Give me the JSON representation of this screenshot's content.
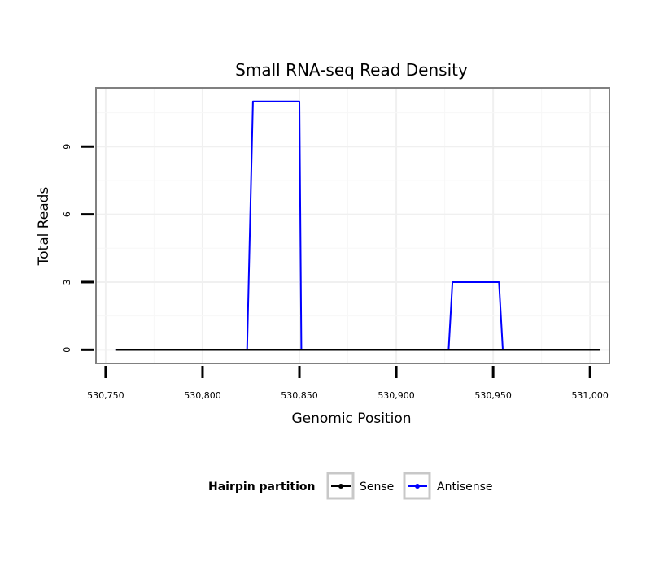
{
  "chart_data": {
    "type": "line",
    "title": "Small RNA-seq Read Density",
    "xlabel": "Genomic Position",
    "ylabel": "Total Reads",
    "xlim": [
      530745,
      531010
    ],
    "ylim": [
      -0.6,
      11.6
    ],
    "x_ticks": [
      530750,
      530800,
      530850,
      530900,
      530950,
      531000
    ],
    "x_tick_labels": [
      "530,750",
      "530,800",
      "530,850",
      "530,900",
      "530,950",
      "531,000"
    ],
    "y_ticks": [
      0,
      3,
      6,
      9
    ],
    "y_tick_labels": [
      "0",
      "3",
      "6",
      "9"
    ],
    "grid": true,
    "legend": {
      "title": "Hairpin partition",
      "placement": "bottom"
    },
    "series": [
      {
        "name": "Sense",
        "color": "#000000",
        "x": [
          530755,
          531005
        ],
        "y": [
          0,
          0
        ]
      },
      {
        "name": "Antisense",
        "color": "#0000ff",
        "x": [
          530755,
          530823,
          530826,
          530850,
          530851,
          530927,
          530929,
          530953,
          530955,
          531005
        ],
        "y": [
          0,
          0,
          11,
          11,
          0,
          0,
          3,
          3,
          0,
          0
        ]
      }
    ]
  }
}
